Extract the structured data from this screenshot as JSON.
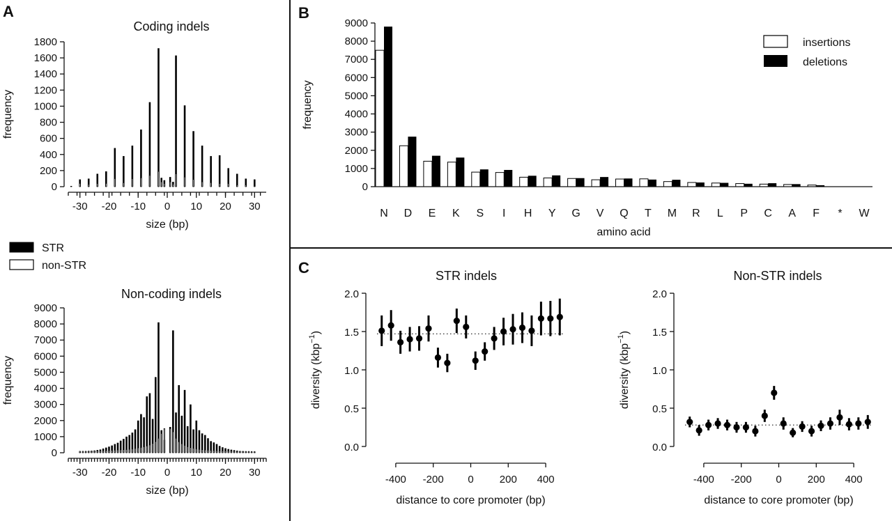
{
  "figure": {
    "panel_a": "A",
    "panel_b": "B",
    "panel_c": "C"
  },
  "chart_data": [
    {
      "id": "coding",
      "type": "bar",
      "title": "Coding indels",
      "xlabel": "size (bp)",
      "ylabel": "frequency",
      "xlim": [
        -34,
        34
      ],
      "ylim": [
        0,
        1800
      ],
      "xticks": [
        -30,
        -20,
        -10,
        0,
        10,
        20,
        30
      ],
      "yticks": [
        0,
        200,
        400,
        600,
        800,
        1000,
        1200,
        1400,
        1600,
        1800
      ],
      "x": [
        -33,
        -30,
        -27,
        -24,
        -21,
        -18,
        -15,
        -12,
        -9,
        -6,
        -3,
        -2,
        -1,
        1,
        2,
        3,
        6,
        9,
        12,
        15,
        18,
        21,
        24,
        27,
        30
      ],
      "series": [
        {
          "name": "STR",
          "color": "#000000",
          "values": [
            5,
            90,
            100,
            160,
            190,
            480,
            380,
            510,
            710,
            1050,
            1720,
            110,
            80,
            120,
            60,
            1630,
            1010,
            690,
            510,
            380,
            390,
            230,
            160,
            100,
            90
          ]
        },
        {
          "name": "non-STR",
          "color": "#ffffff",
          "values": [
            5,
            40,
            30,
            40,
            40,
            100,
            50,
            100,
            110,
            140,
            190,
            60,
            40,
            60,
            30,
            160,
            120,
            90,
            60,
            50,
            40,
            40,
            20,
            20,
            10
          ]
        }
      ]
    },
    {
      "id": "noncoding",
      "type": "bar",
      "title": "Non-coding indels",
      "xlabel": "size (bp)",
      "ylabel": "frequency",
      "xlim": [
        -34,
        34
      ],
      "ylim": [
        0,
        9000
      ],
      "xticks": [
        -30,
        -20,
        -10,
        0,
        10,
        20,
        30
      ],
      "yticks": [
        0,
        1000,
        2000,
        3000,
        4000,
        5000,
        6000,
        7000,
        8000,
        9000
      ],
      "x": [
        -30,
        -29,
        -28,
        -27,
        -26,
        -25,
        -24,
        -23,
        -22,
        -21,
        -20,
        -19,
        -18,
        -17,
        -16,
        -15,
        -14,
        -13,
        -12,
        -11,
        -10,
        -9,
        -8,
        -7,
        -6,
        -5,
        -4,
        -3,
        -2,
        -1,
        1,
        2,
        3,
        4,
        5,
        6,
        7,
        8,
        9,
        10,
        11,
        12,
        13,
        14,
        15,
        16,
        17,
        18,
        19,
        20,
        21,
        22,
        23,
        24,
        25,
        26,
        27,
        28,
        29,
        30
      ],
      "series": [
        {
          "name": "STR",
          "color": "#000000",
          "values": [
            60,
            60,
            80,
            100,
            120,
            140,
            170,
            200,
            260,
            320,
            380,
            450,
            540,
            620,
            750,
            860,
            1000,
            1100,
            1250,
            1450,
            2000,
            2400,
            2200,
            3500,
            3700,
            2100,
            4700,
            8100,
            1400,
            800,
            1600,
            7600,
            2500,
            4200,
            2300,
            3900,
            1650,
            3000,
            1450,
            2000,
            1400,
            1200,
            1100,
            900,
            720,
            640,
            540,
            420,
            340,
            280,
            230,
            190,
            160,
            130,
            100,
            90,
            70,
            60,
            50,
            40
          ]
        },
        {
          "name": "non-STR",
          "color": "#ffffff",
          "values": [
            90,
            90,
            90,
            100,
            100,
            110,
            110,
            120,
            120,
            130,
            140,
            150,
            160,
            170,
            180,
            190,
            200,
            220,
            240,
            270,
            300,
            330,
            370,
            420,
            480,
            580,
            700,
            900,
            1200,
            1500,
            1500,
            1300,
            900,
            680,
            560,
            460,
            380,
            320,
            280,
            240,
            210,
            190,
            170,
            160,
            150,
            140,
            130,
            120,
            115,
            110,
            105,
            100,
            95,
            90,
            90,
            85,
            80,
            80,
            75,
            70
          ]
        }
      ]
    },
    {
      "id": "amino",
      "type": "bar",
      "xlabel": "amino acid",
      "ylabel": "frequency",
      "ylim": [
        0,
        9000
      ],
      "yticks": [
        0,
        1000,
        2000,
        3000,
        4000,
        5000,
        6000,
        7000,
        8000,
        9000
      ],
      "categories": [
        "N",
        "D",
        "E",
        "K",
        "S",
        "I",
        "H",
        "Y",
        "G",
        "V",
        "Q",
        "T",
        "M",
        "R",
        "L",
        "P",
        "C",
        "A",
        "F",
        "*",
        "W"
      ],
      "legend_position": "top-right",
      "series": [
        {
          "name": "insertions",
          "color": "#ffffff",
          "values": [
            7500,
            2250,
            1400,
            1350,
            800,
            780,
            520,
            480,
            450,
            380,
            420,
            430,
            280,
            230,
            200,
            170,
            140,
            120,
            90,
            0,
            0
          ]
        },
        {
          "name": "deletions",
          "color": "#000000",
          "values": [
            8800,
            2750,
            1700,
            1600,
            950,
            920,
            600,
            620,
            470,
            530,
            450,
            390,
            380,
            230,
            210,
            160,
            190,
            140,
            80,
            0,
            0
          ]
        }
      ]
    },
    {
      "id": "str_diversity",
      "type": "scatter",
      "title": "STR indels",
      "xlabel": "distance to core promoter (bp)",
      "ylabel": "diversity (kbp",
      "ylabel_sup": "−1",
      "ylabel_close": ")",
      "xlim": [
        -500,
        500
      ],
      "ylim": [
        0,
        2.0
      ],
      "xticks": [
        -400,
        -200,
        0,
        200,
        400
      ],
      "yticks": [
        0.0,
        0.5,
        1.0,
        1.5,
        2.0
      ],
      "ytick_labels": [
        "0.0",
        "0.5",
        "1.0",
        "1.5",
        "2.0"
      ],
      "reference_line": 1.47,
      "x": [
        -475,
        -425,
        -375,
        -325,
        -275,
        -225,
        -175,
        -125,
        -75,
        -25,
        25,
        75,
        125,
        175,
        225,
        275,
        325,
        375,
        425,
        475
      ],
      "y": [
        1.51,
        1.58,
        1.36,
        1.4,
        1.41,
        1.54,
        1.16,
        1.09,
        1.64,
        1.56,
        1.12,
        1.24,
        1.41,
        1.5,
        1.53,
        1.55,
        1.51,
        1.67,
        1.67,
        1.69
      ],
      "err": [
        0.2,
        0.2,
        0.15,
        0.16,
        0.16,
        0.17,
        0.13,
        0.12,
        0.16,
        0.15,
        0.12,
        0.12,
        0.15,
        0.18,
        0.2,
        0.2,
        0.2,
        0.22,
        0.23,
        0.24
      ]
    },
    {
      "id": "nonstr_diversity",
      "type": "scatter",
      "title": "Non-STR indels",
      "xlabel": "distance to core promoter (bp)",
      "ylabel": "diversity (kbp",
      "ylabel_sup": "−1",
      "ylabel_close": ")",
      "xlim": [
        -500,
        500
      ],
      "ylim": [
        0,
        2.0
      ],
      "xticks": [
        -400,
        -200,
        0,
        200,
        400
      ],
      "yticks": [
        0.0,
        0.5,
        1.0,
        1.5,
        2.0
      ],
      "ytick_labels": [
        "0.0",
        "0.5",
        "1.0",
        "1.5",
        "2.0"
      ],
      "reference_line": 0.28,
      "x": [
        -475,
        -425,
        -375,
        -325,
        -275,
        -225,
        -175,
        -125,
        -75,
        -25,
        25,
        75,
        125,
        175,
        225,
        275,
        325,
        375,
        425,
        475
      ],
      "y": [
        0.32,
        0.21,
        0.28,
        0.3,
        0.28,
        0.25,
        0.25,
        0.2,
        0.4,
        0.7,
        0.3,
        0.18,
        0.26,
        0.2,
        0.27,
        0.3,
        0.38,
        0.29,
        0.3,
        0.32
      ],
      "err": [
        0.07,
        0.07,
        0.07,
        0.07,
        0.07,
        0.07,
        0.07,
        0.07,
        0.08,
        0.09,
        0.08,
        0.06,
        0.07,
        0.07,
        0.07,
        0.08,
        0.1,
        0.08,
        0.08,
        0.09
      ]
    }
  ]
}
